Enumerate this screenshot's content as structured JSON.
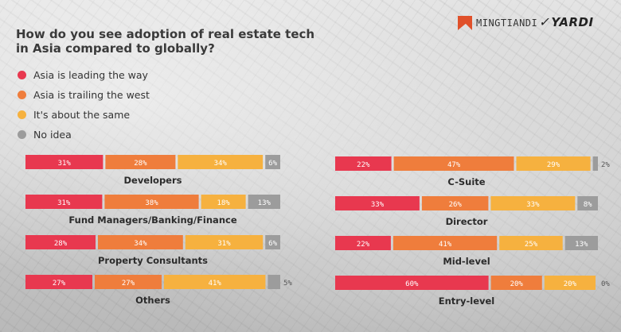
{
  "header": {
    "title": "How do you see adoption of real estate tech in Asia compared to globally?",
    "logo_primary": "MINGTIANDI",
    "logo_secondary": "YARDI"
  },
  "legend": [
    {
      "label": "Asia is leading the way",
      "color": "#e8384f"
    },
    {
      "label": "Asia is trailing the west",
      "color": "#ef7d3c"
    },
    {
      "label": "It's about the same",
      "color": "#f6b13f"
    },
    {
      "label": "No idea",
      "color": "#9c9c9c"
    }
  ],
  "chart_data": [
    {
      "type": "bar",
      "stacked": true,
      "orientation": "horizontal",
      "categories": [
        "Developers",
        "Fund Managers/Banking/Finance",
        "Property Consultants",
        "Others"
      ],
      "series": [
        {
          "name": "Asia is leading the way",
          "values": [
            31,
            31,
            28,
            27
          ],
          "labels": [
            "31%",
            "31%",
            "28%",
            "27%"
          ]
        },
        {
          "name": "Asia is trailing the west",
          "values": [
            28,
            38,
            34,
            27
          ],
          "labels": [
            "28%",
            "38%",
            "34%",
            "27%"
          ]
        },
        {
          "name": "It's about the same",
          "values": [
            34,
            18,
            31,
            41
          ],
          "labels": [
            "34%",
            "18%",
            "31%",
            "41%"
          ]
        },
        {
          "name": "No idea",
          "values": [
            6,
            13,
            6,
            5
          ],
          "labels": [
            "6%",
            "13%",
            "6%",
            "5%"
          ]
        }
      ]
    },
    {
      "type": "bar",
      "stacked": true,
      "orientation": "horizontal",
      "categories": [
        "C-Suite",
        "Director",
        "Mid-level",
        "Entry-level"
      ],
      "series": [
        {
          "name": "Asia is leading the way",
          "values": [
            22,
            33,
            22,
            60
          ],
          "labels": [
            "22%",
            "33%",
            "22%",
            "60%"
          ]
        },
        {
          "name": "Asia is trailing the west",
          "values": [
            47,
            26,
            41,
            20
          ],
          "labels": [
            "47%",
            "26%",
            "41%",
            "20%"
          ]
        },
        {
          "name": "It's about the same",
          "values": [
            29,
            33,
            25,
            20
          ],
          "labels": [
            "29%",
            "33%",
            "25%",
            "20%"
          ]
        },
        {
          "name": "No idea",
          "values": [
            2,
            8,
            13,
            0
          ],
          "labels": [
            "2%",
            "8%",
            "13%",
            "0%"
          ]
        }
      ]
    }
  ]
}
